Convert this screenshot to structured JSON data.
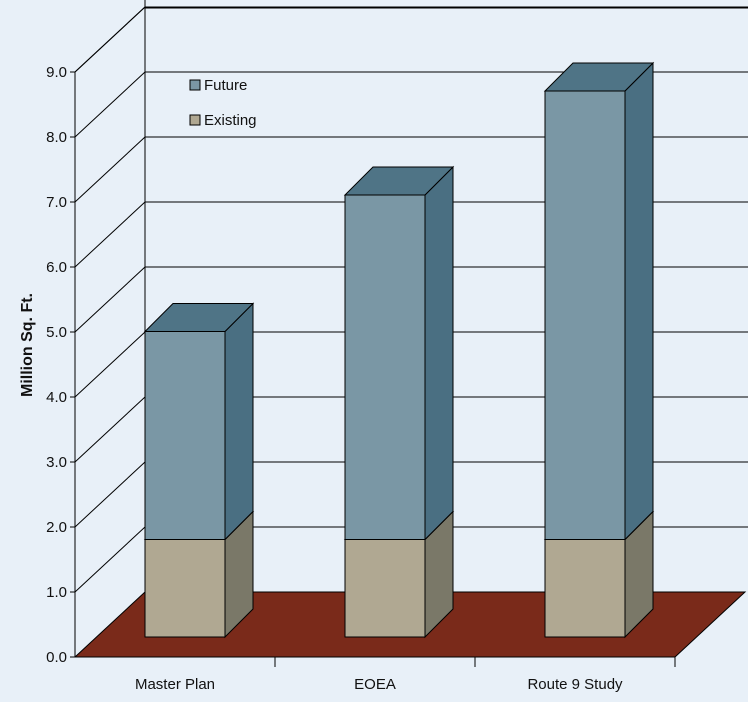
{
  "colors": {
    "background": "#e8f0f8",
    "floor": "#7a2a1a",
    "future_front": "#7a97a5",
    "future_top": "#4f7486",
    "future_side": "#4a6f82",
    "existing_front": "#b0a892",
    "existing_top": "#8a8676",
    "existing_side": "#7a7868",
    "grid": "#000000"
  },
  "chart_data": {
    "type": "bar",
    "stacked": true,
    "three_d": true,
    "categories": [
      "Master Plan",
      "EOEA",
      "Route 9 Study"
    ],
    "series": [
      {
        "name": "Existing",
        "values": [
          1.5,
          1.5,
          1.5
        ]
      },
      {
        "name": "Future",
        "values": [
          3.2,
          5.3,
          6.9
        ]
      }
    ],
    "title": "",
    "xlabel": "",
    "ylabel": "Million Sq. Ft.",
    "ylim": [
      0,
      9
    ],
    "yticks": [
      "0.0",
      "1.0",
      "2.0",
      "3.0",
      "4.0",
      "5.0",
      "6.0",
      "7.0",
      "8.0",
      "9.0"
    ],
    "grid": true,
    "legend_position": "top-left"
  }
}
